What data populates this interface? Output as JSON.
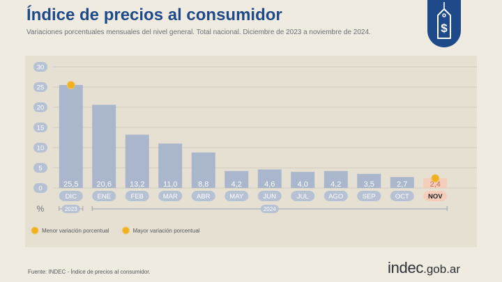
{
  "header": {
    "title": "Índice de precios al consumidor",
    "subtitle": "Variaciones porcentuales mensuales del nivel general. Total nacional. Diciembre de 2023 a noviembre de 2024.",
    "badge_icon": "price-tag-dollar-icon"
  },
  "colors": {
    "title": "#1f4a8a",
    "bar": "#a9b6cb",
    "bar_highlight": "#f4cdbb",
    "pill": "#b6c2d4",
    "marker": "#f2b01e",
    "background": "#f0ebe1",
    "panel": "#e6e0d3"
  },
  "chart_data": {
    "type": "bar",
    "categories": [
      "DIC",
      "ENE",
      "FEB",
      "MAR",
      "ABR",
      "MAY",
      "JUN",
      "JUL",
      "AGO",
      "SEP",
      "OCT",
      "NOV"
    ],
    "value_labels": [
      "25,5",
      "20,6",
      "13,2",
      "11,0",
      "8,8",
      "4,2",
      "4,6",
      "4,0",
      "4,2",
      "3,5",
      "2,7",
      "2,4"
    ],
    "values": [
      25.5,
      20.6,
      13.2,
      11.0,
      8.8,
      4.2,
      4.6,
      4.0,
      4.2,
      3.5,
      2.7,
      2.4
    ],
    "highlight_index": 11,
    "ylim": [
      0,
      30
    ],
    "yticks": [
      "0",
      "5",
      "10",
      "15",
      "20",
      "25",
      "30"
    ],
    "ylabel": "%",
    "grid": true,
    "year_groups": [
      {
        "label": "2023",
        "from": 0,
        "to": 0
      },
      {
        "label": "2024",
        "from": 1,
        "to": 11
      }
    ],
    "markers": [
      {
        "index": 11,
        "type": "min",
        "label": "Menor variación porcentual"
      },
      {
        "index": 0,
        "type": "max",
        "label": "Mayor variación porcentual"
      }
    ],
    "legend": [
      {
        "label": "Menor variación porcentual",
        "type": "min"
      },
      {
        "label": "Mayor variación porcentual",
        "type": "max"
      }
    ],
    "legend_position": "bottom-left"
  },
  "footer": {
    "source": "Fuente: INDEC - Índice de precios al consumidor.",
    "brand_main": "indec",
    "brand_domain": ".gob.ar"
  }
}
